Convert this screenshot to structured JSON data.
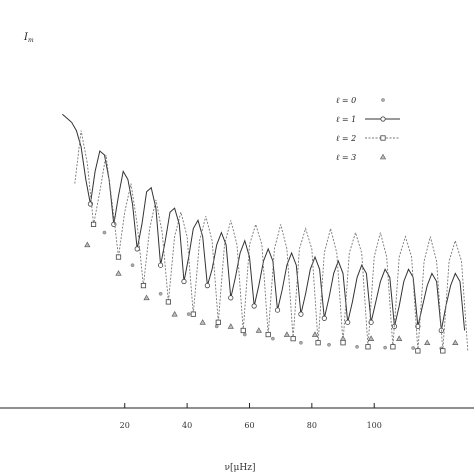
{
  "chart_data": {
    "type": "line",
    "ylabel": "I",
    "ylabel_sub": "m",
    "xlabel": "ν[μHz]",
    "xlim": [
      -20,
      132
    ],
    "ylim": [
      0,
      1
    ],
    "x_ticks": [
      20,
      40,
      60,
      80,
      100
    ],
    "x_tick_labels": [
      "20",
      "40",
      "60",
      "80",
      "100"
    ],
    "grid": false,
    "legend": {
      "position": "top-right",
      "entries": [
        {
          "label": "ℓ = 0",
          "marker": "star",
          "line": "none"
        },
        {
          "label": "ℓ = 1",
          "marker": "circle",
          "line": "solid"
        },
        {
          "label": "ℓ = 2",
          "marker": "square",
          "line": "dashed"
        },
        {
          "label": "ℓ = 3",
          "marker": "triangle",
          "line": "none"
        }
      ]
    },
    "series": [
      {
        "name": "ℓ = 0",
        "style": "star",
        "x": [
          13.5,
          22.5,
          31.5,
          40.5,
          49.5,
          58.5,
          67.5,
          76.5,
          85.5,
          94.5,
          103.5,
          112.5,
          121.5
        ],
        "y": [
          0.43,
          0.35,
          0.28,
          0.23,
          0.2,
          0.18,
          0.17,
          0.16,
          0.155,
          0.15,
          0.148,
          0.147,
          0.146
        ]
      },
      {
        "name": "ℓ = 1",
        "style": "solid",
        "x": [
          0.0,
          1.5,
          3.0,
          4.5,
          6.0,
          7.5,
          9.0,
          10.5,
          12.0,
          13.5,
          15.0,
          16.5,
          18.0,
          19.5,
          21.0,
          22.5,
          24.0,
          25.5,
          27.0,
          28.5,
          30.0,
          31.5,
          33.0,
          34.5,
          36.0,
          37.5,
          39.0,
          40.5,
          42.0,
          43.5,
          45.0,
          46.5,
          48.0,
          49.5,
          51.0,
          52.5,
          54.0,
          55.5,
          57.0,
          58.5,
          60.0,
          61.5,
          63.0,
          64.5,
          66.0,
          67.5,
          69.0,
          70.5,
          72.0,
          73.5,
          75.0,
          76.5,
          78.0,
          79.5,
          81.0,
          82.5,
          84.0,
          85.5,
          87.0,
          88.5,
          90.0,
          91.5,
          93.0,
          94.5,
          96.0,
          97.5,
          99.0,
          100.5,
          102.0,
          103.5,
          105.0,
          106.5,
          108.0,
          109.5,
          111.0,
          112.5,
          114.0,
          115.5,
          117.0,
          118.5,
          120.0,
          121.5,
          123.0,
          124.5,
          126.0,
          127.5,
          129.0
        ],
        "y": [
          0.72,
          0.71,
          0.7,
          0.68,
          0.64,
          0.56,
          0.5,
          0.58,
          0.63,
          0.62,
          0.56,
          0.45,
          0.52,
          0.58,
          0.56,
          0.5,
          0.39,
          0.45,
          0.53,
          0.54,
          0.49,
          0.35,
          0.41,
          0.48,
          0.49,
          0.45,
          0.31,
          0.37,
          0.44,
          0.46,
          0.42,
          0.3,
          0.34,
          0.4,
          0.43,
          0.4,
          0.27,
          0.32,
          0.38,
          0.41,
          0.37,
          0.25,
          0.3,
          0.36,
          0.39,
          0.36,
          0.24,
          0.29,
          0.35,
          0.38,
          0.35,
          0.23,
          0.28,
          0.34,
          0.37,
          0.34,
          0.22,
          0.27,
          0.33,
          0.36,
          0.33,
          0.21,
          0.26,
          0.32,
          0.35,
          0.33,
          0.21,
          0.26,
          0.31,
          0.34,
          0.32,
          0.2,
          0.25,
          0.31,
          0.34,
          0.32,
          0.2,
          0.25,
          0.3,
          0.33,
          0.31,
          0.19,
          0.25,
          0.3,
          0.33,
          0.31,
          0.19
        ]
      },
      {
        "name": "ℓ = 2",
        "style": "dashed",
        "x": [
          4.0,
          6.0,
          8.0,
          10.0,
          12.0,
          14.0,
          16.0,
          18.0,
          20.0,
          22.0,
          24.0,
          26.0,
          28.0,
          30.0,
          32.0,
          34.0,
          36.0,
          38.0,
          40.0,
          42.0,
          44.0,
          46.0,
          48.0,
          50.0,
          52.0,
          54.0,
          56.0,
          58.0,
          60.0,
          62.0,
          64.0,
          66.0,
          68.0,
          70.0,
          72.0,
          74.0,
          76.0,
          78.0,
          80.0,
          82.0,
          84.0,
          86.0,
          88.0,
          90.0,
          92.0,
          94.0,
          96.0,
          98.0,
          100.0,
          102.0,
          104.0,
          106.0,
          108.0,
          110.0,
          112.0,
          114.0,
          116.0,
          118.0,
          120.0,
          122.0,
          124.0,
          126.0,
          128.0,
          130.0
        ],
        "y": [
          0.55,
          0.68,
          0.6,
          0.45,
          0.53,
          0.62,
          0.5,
          0.37,
          0.48,
          0.55,
          0.45,
          0.3,
          0.44,
          0.51,
          0.43,
          0.26,
          0.42,
          0.48,
          0.42,
          0.23,
          0.41,
          0.47,
          0.41,
          0.21,
          0.4,
          0.46,
          0.4,
          0.19,
          0.4,
          0.45,
          0.4,
          0.18,
          0.39,
          0.45,
          0.39,
          0.17,
          0.39,
          0.44,
          0.39,
          0.16,
          0.38,
          0.44,
          0.38,
          0.16,
          0.38,
          0.43,
          0.38,
          0.15,
          0.37,
          0.43,
          0.37,
          0.15,
          0.37,
          0.42,
          0.37,
          0.14,
          0.36,
          0.42,
          0.36,
          0.14,
          0.36,
          0.41,
          0.36,
          0.14
        ]
      },
      {
        "name": "ℓ = 3",
        "style": "triangle",
        "x": [
          8.0,
          18.0,
          27.0,
          36.0,
          45.0,
          54.0,
          63.0,
          72.0,
          81.0,
          90.0,
          99.0,
          108.0,
          117.0,
          126.0
        ],
        "y": [
          0.4,
          0.33,
          0.27,
          0.23,
          0.21,
          0.2,
          0.19,
          0.18,
          0.18,
          0.17,
          0.17,
          0.17,
          0.16,
          0.16
        ]
      }
    ]
  }
}
